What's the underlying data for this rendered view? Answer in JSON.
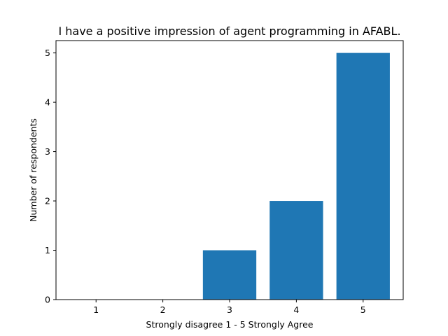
{
  "chart_data": {
    "type": "bar",
    "title": "I have a positive impression of agent programming in AFABL.",
    "xlabel": "Strongly disagree 1 - 5  Strongly Agree",
    "ylabel": "Number of respondents",
    "categories": [
      "1",
      "2",
      "3",
      "4",
      "5"
    ],
    "values": [
      0,
      0,
      1,
      2,
      5
    ],
    "yticks": [
      "0",
      "1",
      "2",
      "3",
      "4",
      "5"
    ],
    "ylim": [
      0,
      5.25
    ],
    "grid": false,
    "bar_color": "#1f77b4"
  }
}
